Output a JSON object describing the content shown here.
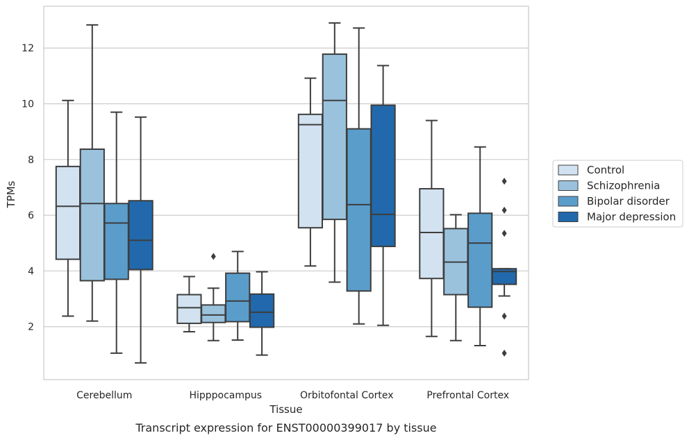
{
  "chart_data": {
    "type": "box",
    "title": "",
    "caption": "Transcript expression for ENST00000399017 by tissue",
    "xlabel": "Tissue",
    "ylabel": "TPMs",
    "yticks": [
      2,
      4,
      6,
      8,
      10,
      12
    ],
    "ylim": [
      0.1,
      13.5
    ],
    "grid": "horizontal",
    "legend_position": "right",
    "categories": [
      "Cerebellum",
      "Hipppocampus",
      "Orbitofontal Cortex",
      "Prefrontal Cortex"
    ],
    "series": [
      {
        "name": "Control",
        "color": "#d2e2f1",
        "boxes": [
          {
            "whislo": 2.38,
            "q1": 4.42,
            "med": 6.32,
            "q3": 7.75,
            "whishi": 10.12,
            "fliers": []
          },
          {
            "whislo": 1.82,
            "q1": 2.12,
            "med": 2.68,
            "q3": 3.15,
            "whishi": 3.8,
            "fliers": []
          },
          {
            "whislo": 4.18,
            "q1": 5.55,
            "med": 9.25,
            "q3": 9.62,
            "whishi": 10.92,
            "fliers": []
          },
          {
            "whislo": 1.65,
            "q1": 3.73,
            "med": 5.38,
            "q3": 6.95,
            "whishi": 9.4,
            "fliers": []
          }
        ]
      },
      {
        "name": "Schizophrenia",
        "color": "#9ac2dd",
        "boxes": [
          {
            "whislo": 2.2,
            "q1": 3.65,
            "med": 6.42,
            "q3": 8.37,
            "whishi": 12.83,
            "fliers": []
          },
          {
            "whislo": 1.5,
            "q1": 2.15,
            "med": 2.42,
            "q3": 2.78,
            "whishi": 3.38,
            "fliers": [
              4.52
            ]
          },
          {
            "whislo": 3.6,
            "q1": 5.85,
            "med": 10.12,
            "q3": 11.78,
            "whishi": 12.9,
            "fliers": []
          },
          {
            "whislo": 1.5,
            "q1": 3.15,
            "med": 4.32,
            "q3": 5.52,
            "whishi": 6.02,
            "fliers": []
          }
        ]
      },
      {
        "name": "Bipolar disorder",
        "color": "#5a9dcb",
        "boxes": [
          {
            "whislo": 1.05,
            "q1": 3.7,
            "med": 5.72,
            "q3": 6.42,
            "whishi": 9.7,
            "fliers": []
          },
          {
            "whislo": 1.52,
            "q1": 2.18,
            "med": 2.92,
            "q3": 3.92,
            "whishi": 4.7,
            "fliers": []
          },
          {
            "whislo": 2.1,
            "q1": 3.28,
            "med": 6.38,
            "q3": 9.1,
            "whishi": 12.72,
            "fliers": []
          },
          {
            "whislo": 1.32,
            "q1": 2.7,
            "med": 5.0,
            "q3": 6.07,
            "whishi": 8.45,
            "fliers": []
          }
        ]
      },
      {
        "name": "Major depression",
        "color": "#2169ac",
        "boxes": [
          {
            "whislo": 0.7,
            "q1": 4.05,
            "med": 5.1,
            "q3": 6.52,
            "whishi": 9.52,
            "fliers": []
          },
          {
            "whislo": 0.98,
            "q1": 1.98,
            "med": 2.52,
            "q3": 3.17,
            "whishi": 3.97,
            "fliers": []
          },
          {
            "whislo": 2.05,
            "q1": 4.88,
            "med": 6.03,
            "q3": 9.95,
            "whishi": 11.37,
            "fliers": []
          },
          {
            "whislo": 3.1,
            "q1": 3.52,
            "med": 3.98,
            "q3": 4.08,
            "whishi": 4.08,
            "fliers": [
              7.22,
              6.18,
              5.35,
              2.38,
              1.05
            ]
          }
        ]
      }
    ]
  }
}
